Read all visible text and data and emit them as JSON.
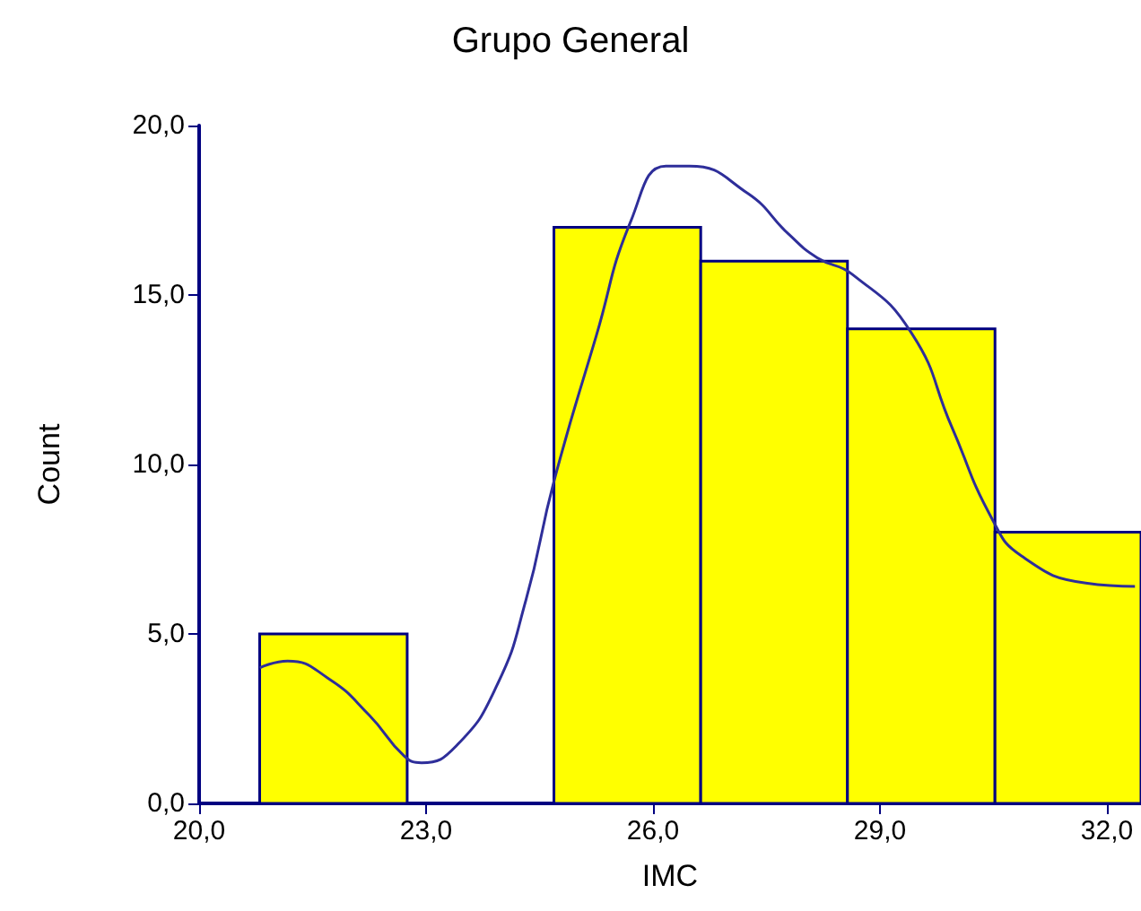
{
  "chart_data": {
    "type": "histogram",
    "title": "Grupo General",
    "xlabel": "IMC",
    "ylabel": "Count",
    "bins": [
      20.8,
      22.75,
      24.69,
      26.63,
      28.57,
      30.52,
      32.45
    ],
    "values": [
      5,
      0,
      17,
      16,
      14,
      8
    ],
    "color": "#ffff00",
    "series": [
      {
        "type": "line",
        "color": "#2e2e9a",
        "x": [
          20.8,
          21.17,
          21.7,
          22.25,
          22.71,
          22.94,
          23.4,
          23.94,
          24.32,
          24.69,
          25.25,
          25.71,
          26.17,
          26.48,
          27.25,
          27.79,
          28.17,
          28.64,
          29.41,
          29.95,
          30.48,
          30.87,
          31.72,
          32.37
        ],
        "values": [
          4.0,
          4.2,
          3.7,
          2.6,
          1.4,
          1.2,
          1.7,
          3.5,
          6.0,
          9.5,
          13.8,
          17.2,
          18.8,
          18.8,
          18.0,
          16.8,
          16.1,
          15.6,
          13.9,
          11.1,
          8.4,
          7.3,
          6.5,
          6.4
        ]
      }
    ],
    "xlim": [
      20,
      32.45
    ],
    "xticks": [
      {
        "value": 20,
        "label": "20,0"
      },
      {
        "value": 23,
        "label": "23,0"
      },
      {
        "value": 26,
        "label": "26,0"
      },
      {
        "value": 29,
        "label": "29,0"
      },
      {
        "value": 32,
        "label": "32,0"
      }
    ],
    "ylim": [
      0,
      20
    ],
    "yticks": [
      {
        "value": 0,
        "label": "0,0"
      },
      {
        "value": 5,
        "label": "5,0"
      },
      {
        "value": 10,
        "label": "10,0"
      },
      {
        "value": 15,
        "label": "15,0"
      },
      {
        "value": 20,
        "label": "20,0"
      }
    ],
    "grid": false
  }
}
